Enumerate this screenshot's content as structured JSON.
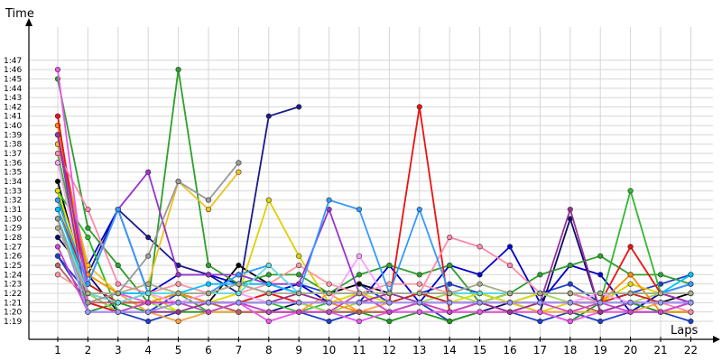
{
  "chart_data": {
    "type": "line",
    "title": "",
    "xlabel": "Laps",
    "ylabel": "Time",
    "x": [
      1,
      2,
      3,
      4,
      5,
      6,
      7,
      8,
      9,
      10,
      11,
      12,
      13,
      14,
      15,
      16,
      17,
      18,
      19,
      20,
      21,
      22
    ],
    "x_tick_labels": [
      "1",
      "2",
      "3",
      "4",
      "5",
      "6",
      "7",
      "8",
      "9",
      "10",
      "11",
      "12",
      "13",
      "14",
      "15",
      "16",
      "17",
      "18",
      "19",
      "20",
      "21",
      "22"
    ],
    "y_tick_labels": [
      "1:19",
      "1:20",
      "1:21",
      "1:22",
      "1:23",
      "1:24",
      "1:25",
      "1:26",
      "1:27",
      "1:28",
      "1:29",
      "1:30",
      "1:31",
      "1:32",
      "1:33",
      "1:34",
      "1:35",
      "1:36",
      "1:37",
      "1:38",
      "1:39",
      "1:40",
      "1:41",
      "1:42",
      "1:43",
      "1:44",
      "1:45",
      "1:46",
      "1:47"
    ],
    "y_unit": "seconds",
    "ylim": [
      78,
      108
    ],
    "xlim": [
      0.1,
      22.2
    ],
    "grid": true,
    "marker": "circle",
    "series": [
      {
        "color": "#1f3fc8",
        "values": [
          86,
          82,
          80,
          79,
          80,
          81,
          81,
          80,
          80,
          79,
          80,
          80,
          81,
          79,
          80,
          80,
          79,
          80,
          79,
          80,
          80,
          79
        ]
      },
      {
        "color": "#1f3fc8",
        "values": [
          86,
          81,
          80,
          80,
          82,
          81,
          81,
          82,
          83,
          82,
          83,
          81,
          82,
          83,
          82,
          81,
          82,
          83,
          81,
          82,
          83,
          84
        ]
      },
      {
        "color": "#1a1a8a",
        "values": [
          99,
          84,
          91,
          88,
          85,
          84,
          82,
          101,
          102,
          null,
          null,
          null,
          null,
          null,
          null,
          null,
          null,
          null,
          null,
          null,
          null,
          null
        ]
      },
      {
        "color": "#000000",
        "values": [
          94,
          82,
          81,
          82,
          82,
          81,
          85,
          83,
          82,
          82,
          83,
          82,
          82,
          81,
          81,
          82,
          82,
          82,
          81,
          81,
          81,
          82
        ]
      },
      {
        "color": "#0000cc",
        "values": [
          98,
          85,
          91,
          82,
          84,
          84,
          83,
          82,
          83,
          81,
          81,
          85,
          81,
          85,
          84,
          87,
          81,
          85,
          84,
          80,
          82,
          83
        ]
      },
      {
        "color": "#0b0b6b",
        "values": [
          88,
          84,
          80,
          81,
          81,
          81,
          80,
          80,
          81,
          80,
          80,
          80,
          81,
          80,
          80,
          81,
          80,
          90,
          80,
          81,
          80,
          81
        ]
      },
      {
        "color": "#2ca02c",
        "values": [
          105,
          89,
          85,
          81,
          106,
          85,
          83,
          84,
          84,
          82,
          84,
          85,
          84,
          85,
          81,
          82,
          84,
          85,
          86,
          84,
          84,
          83
        ]
      },
      {
        "color": "#1c9a1c",
        "values": [
          93,
          80,
          81,
          80,
          80,
          80,
          80,
          80,
          80,
          80,
          80,
          79,
          80,
          79,
          80,
          80,
          80,
          79,
          81,
          81,
          80,
          80
        ]
      },
      {
        "color": "#33b833",
        "values": [
          97,
          82,
          81,
          81,
          82,
          80,
          81,
          81,
          80,
          81,
          81,
          81,
          81,
          81,
          81,
          81,
          81,
          81,
          81,
          93,
          82,
          81
        ]
      },
      {
        "color": "#22c022",
        "values": [
          93,
          88,
          80,
          80,
          81,
          80,
          80,
          80,
          80,
          80,
          80,
          80,
          80,
          80,
          80,
          80,
          80,
          80,
          80,
          80,
          80,
          80
        ]
      },
      {
        "color": "#a0d64a",
        "values": [
          96,
          82,
          80,
          81,
          80,
          81,
          81,
          82,
          81,
          80,
          81,
          81,
          81,
          82,
          81,
          82,
          82,
          81,
          81,
          81,
          82,
          82
        ]
      },
      {
        "color": "#e0d000",
        "values": [
          92,
          82,
          81,
          81,
          81,
          81,
          82,
          92,
          86,
          81,
          82,
          81,
          81,
          80,
          81,
          81,
          80,
          81,
          81,
          83,
          82,
          81
        ]
      },
      {
        "color": "#dede00",
        "values": [
          93,
          83,
          81,
          82,
          80,
          81,
          82,
          81,
          82,
          81,
          82,
          81,
          82,
          81,
          82,
          81,
          82,
          82,
          82,
          81,
          81,
          81
        ]
      },
      {
        "color": "#ffa040",
        "values": [
          100,
          81,
          82,
          80,
          79,
          80,
          80,
          80,
          80,
          82,
          80,
          81,
          81,
          80,
          80,
          80,
          80,
          80,
          80,
          80,
          81,
          81
        ]
      },
      {
        "color": "#f0c020",
        "values": [
          98,
          85,
          82,
          83,
          94,
          91,
          95,
          null,
          null,
          null,
          null,
          null,
          null,
          null,
          null,
          null,
          null,
          null,
          null,
          null,
          null,
          null
        ]
      },
      {
        "color": "#ff8c00",
        "values": [
          100,
          84,
          82,
          81,
          82,
          81,
          81,
          81,
          81,
          81,
          80,
          80,
          81,
          81,
          81,
          81,
          81,
          81,
          81,
          84,
          80,
          80
        ]
      },
      {
        "color": "#ee1111",
        "values": [
          101,
          81,
          80,
          80,
          81,
          81,
          81,
          82,
          81,
          81,
          81,
          81,
          102,
          80,
          81,
          80,
          81,
          81,
          81,
          87,
          82,
          81
        ]
      },
      {
        "color": "#cc2222",
        "values": [
          91,
          83,
          81,
          81,
          81,
          81,
          81,
          81,
          81,
          81,
          81,
          81,
          82,
          81,
          81,
          81,
          81,
          81,
          81,
          82,
          81,
          81
        ]
      },
      {
        "color": "#c06060",
        "values": [
          85,
          81,
          81,
          81,
          81,
          81,
          80,
          80,
          80,
          80,
          80,
          80,
          80,
          80,
          81,
          80,
          81,
          81,
          80,
          81,
          81,
          81
        ]
      },
      {
        "color": "#ff88aa",
        "values": [
          97,
          91,
          83,
          82,
          83,
          82,
          83,
          83,
          82,
          81,
          81,
          82,
          82,
          88,
          87,
          85,
          82,
          82,
          81,
          81,
          81,
          80
        ]
      },
      {
        "color": "#ff9aa0",
        "values": [
          84,
          82,
          82,
          82,
          83,
          82,
          82,
          83,
          85,
          83,
          82,
          83,
          83,
          82,
          82,
          82,
          82,
          82,
          82,
          82,
          82,
          82
        ]
      },
      {
        "color": "#ffa0ff",
        "values": [
          96,
          82,
          81,
          82,
          81,
          82,
          82,
          81,
          81,
          81,
          86,
          81,
          81,
          81,
          81,
          81,
          81,
          81,
          82,
          81,
          81,
          81
        ]
      },
      {
        "color": "#ee55ee",
        "values": [
          106,
          81,
          82,
          81,
          81,
          81,
          81,
          79,
          80,
          80,
          79,
          80,
          80,
          80,
          80,
          80,
          80,
          79,
          80,
          80,
          80,
          81
        ]
      },
      {
        "color": "#cc44cc",
        "values": [
          87,
          80,
          80,
          81,
          81,
          80,
          81,
          80,
          80,
          80,
          82,
          80,
          81,
          80,
          81,
          81,
          81,
          80,
          81,
          80,
          80,
          81
        ]
      },
      {
        "color": "#9933cc",
        "values": [
          99,
          83,
          91,
          95,
          84,
          84,
          84,
          83,
          83,
          91,
          82,
          82,
          82,
          82,
          82,
          82,
          82,
          82,
          82,
          82,
          82,
          81
        ]
      },
      {
        "color": "#993399",
        "values": [
          99,
          80,
          80,
          80,
          80,
          81,
          81,
          81,
          82,
          81,
          81,
          82,
          81,
          81,
          81,
          80,
          81,
          91,
          80,
          81,
          81,
          81
        ]
      },
      {
        "color": "#9999ff",
        "values": [
          90,
          80,
          80,
          80,
          81,
          81,
          81,
          81,
          81,
          81,
          81,
          81,
          81,
          81,
          81,
          81,
          81,
          81,
          81,
          81,
          81,
          81
        ]
      },
      {
        "color": "#3399ff",
        "values": [
          92,
          83,
          91,
          82,
          82,
          82,
          84,
          85,
          82,
          92,
          91,
          82,
          91,
          82,
          82,
          82,
          82,
          82,
          82,
          82,
          82,
          83
        ]
      },
      {
        "color": "#00c0ff",
        "values": [
          91,
          82,
          82,
          82,
          82,
          83,
          83,
          83,
          82,
          82,
          82,
          82,
          82,
          82,
          82,
          82,
          82,
          82,
          82,
          82,
          82,
          84
        ]
      },
      {
        "color": "#66dddd",
        "values": [
          90,
          82,
          81,
          82,
          82,
          82,
          82,
          85,
          82,
          82,
          82,
          82,
          82,
          82,
          82,
          82,
          82,
          82,
          82,
          82,
          82,
          82
        ]
      },
      {
        "color": "#999999",
        "values": [
          90,
          81,
          82,
          86,
          94,
          92,
          96,
          null,
          null,
          null,
          null,
          null,
          null,
          null,
          null,
          null,
          null,
          null,
          null,
          null,
          null,
          null
        ]
      },
      {
        "color": "#aaaa88",
        "values": [
          89,
          82,
          82,
          83,
          82,
          82,
          83,
          82,
          82,
          82,
          82,
          82,
          82,
          82,
          83,
          82,
          82,
          82,
          82,
          82,
          82,
          82
        ]
      }
    ]
  }
}
